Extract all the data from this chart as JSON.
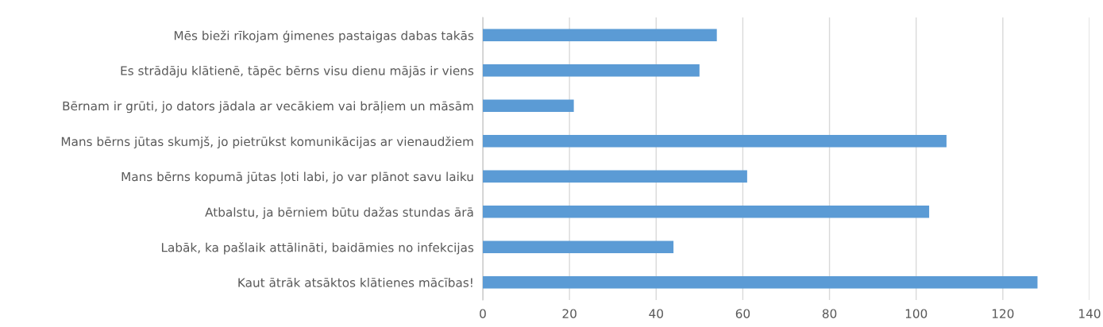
{
  "chart_data": {
    "type": "bar",
    "orientation": "horizontal",
    "categories": [
      "Mēs bieži rīkojam ģimenes pastaigas dabas takās",
      "Es strādāju klātienē, tāpēc bērns visu dienu mājās ir viens",
      "Bērnam ir grūti, jo dators jādala ar vecākiem vai brāļiem un māsām",
      "Mans bērns jūtas skumjš, jo pietrūkst komunikācijas ar vienaudžiem",
      "Mans bērns kopumā jūtas ļoti labi, jo var plānot savu laiku",
      "Atbalstu, ja bērniem būtu dažas stundas ārā",
      "Labāk, ka pašlaik attālināti, baidāmies no infekcijas",
      "Kaut ātrāk atsāktos klātienes mācības!"
    ],
    "values": [
      54,
      50,
      21,
      107,
      61,
      103,
      44,
      128
    ],
    "color": "#5b9bd5",
    "xlim": [
      0,
      140
    ],
    "xticks": [
      0,
      20,
      40,
      60,
      80,
      100,
      120,
      140
    ],
    "grid": "x",
    "legend": false
  }
}
